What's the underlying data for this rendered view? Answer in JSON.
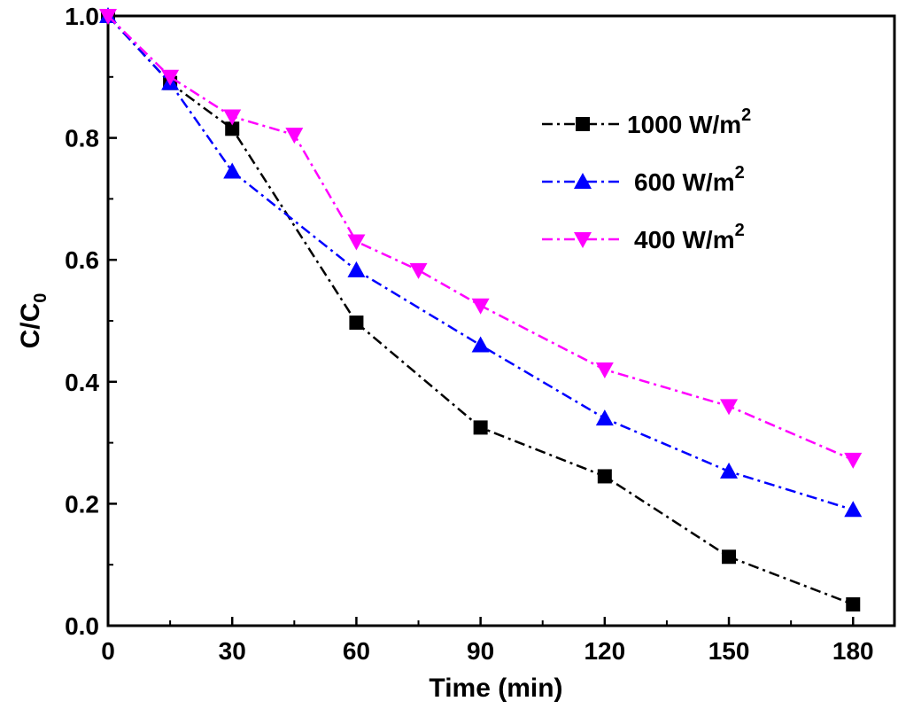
{
  "chart_data": {
    "type": "line",
    "xlabel": "Time (min)",
    "ylabel": {
      "main": "C/C",
      "subscript": "0"
    },
    "xlim": [
      0,
      190
    ],
    "ylim": [
      0,
      1.0
    ],
    "xticks": [
      0,
      30,
      60,
      90,
      120,
      150,
      180
    ],
    "xtick_labels": [
      "0",
      "30",
      "60",
      "90",
      "120",
      "150",
      "180"
    ],
    "yticks": [
      0,
      0.2,
      0.4,
      0.6,
      0.8,
      1.0
    ],
    "ytick_labels": [
      "0.0",
      "0.2",
      "0.4",
      "0.6",
      "0.8",
      "1.0"
    ],
    "grid": false,
    "legend_position": "top-right",
    "series": [
      {
        "name": "1000 W/m",
        "name_superscript": "2",
        "color": "#000000",
        "marker": "square",
        "line_style": "dash-dot",
        "x": [
          0,
          15,
          30,
          60,
          90,
          120,
          150,
          180
        ],
        "y": [
          1.0,
          0.89,
          0.815,
          0.497,
          0.325,
          0.245,
          0.113,
          0.035
        ]
      },
      {
        "name": "600 W/m",
        "name_superscript": "2",
        "color": "#0000ff",
        "marker": "triangle-up",
        "line_style": "dash-dot",
        "x": [
          0,
          15,
          30,
          60,
          90,
          120,
          150,
          180
        ],
        "y": [
          1.0,
          0.89,
          0.745,
          0.583,
          0.46,
          0.34,
          0.253,
          0.19
        ]
      },
      {
        "name": "400 W/m",
        "name_superscript": "2",
        "color": "#ff00ff",
        "marker": "triangle-down",
        "line_style": "dash-dot",
        "x": [
          0,
          15,
          30,
          45,
          60,
          75,
          90,
          120,
          150,
          180
        ],
        "y": [
          1.0,
          0.9,
          0.835,
          0.805,
          0.63,
          0.583,
          0.525,
          0.42,
          0.36,
          0.272
        ]
      }
    ]
  }
}
